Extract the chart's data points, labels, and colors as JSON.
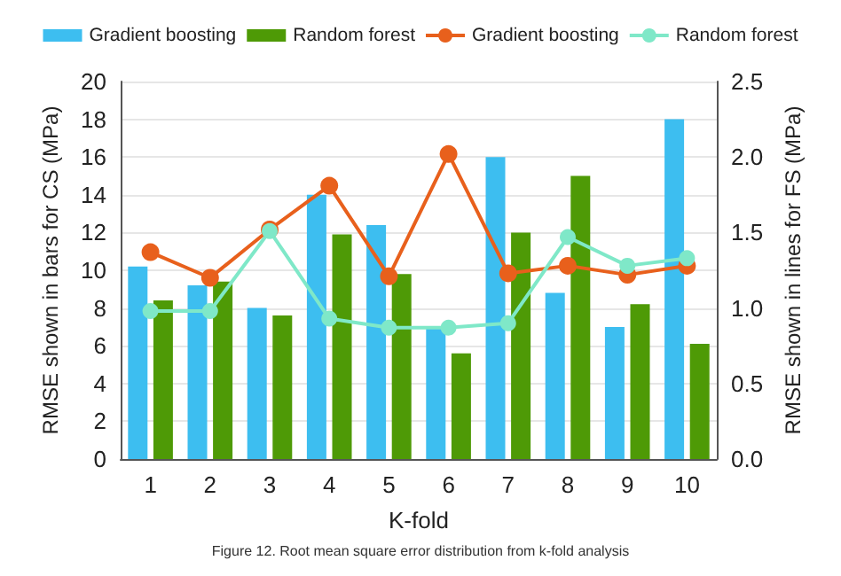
{
  "chart_data": {
    "type": "bar",
    "xlabel": "K-fold",
    "ylabel": "RMSE shown in bars for CS (MPa)",
    "y2label": "RMSE shown in lines for FS (MPa)",
    "categories": [
      "1",
      "2",
      "3",
      "4",
      "5",
      "6",
      "7",
      "8",
      "9",
      "10"
    ],
    "series": [
      {
        "name": "Gradient boosting",
        "type": "bar",
        "color": "#3dbef0",
        "values": [
          10.2,
          9.2,
          8.0,
          14.0,
          12.4,
          7.0,
          16.0,
          8.8,
          7.0,
          18.0
        ]
      },
      {
        "name": "Random forest",
        "type": "bar",
        "color": "#4e9a06",
        "values": [
          8.4,
          9.4,
          7.6,
          11.9,
          9.8,
          5.6,
          12.0,
          15.0,
          8.2,
          6.1
        ]
      },
      {
        "name": "Gradient boosting",
        "type": "line",
        "axis": "y2",
        "color": "#e8601c",
        "values": [
          1.37,
          1.2,
          1.52,
          1.81,
          1.21,
          2.02,
          1.23,
          1.28,
          1.22,
          1.28
        ]
      },
      {
        "name": "Random forest",
        "type": "line",
        "axis": "y2",
        "color": "#7fe8c8",
        "values": [
          0.98,
          0.98,
          1.51,
          0.93,
          0.87,
          0.87,
          0.9,
          1.47,
          1.28,
          1.33
        ]
      }
    ],
    "ylim": [
      0,
      20
    ],
    "yticks": [
      0,
      2,
      4,
      6,
      8,
      10,
      12,
      14,
      16,
      18,
      20
    ],
    "y2lim": [
      0,
      2.5
    ],
    "y2ticks": [
      {
        "value": 0,
        "label": "0.0"
      },
      {
        "value": 0.5,
        "label": "0.5"
      },
      {
        "value": 1,
        "label": "1.0"
      },
      {
        "value": 1.5,
        "label": "1.5"
      },
      {
        "value": 2,
        "label": "2.0"
      },
      {
        "value": 2.5,
        "label": "2.5"
      }
    ],
    "grid": "y",
    "legend": "top",
    "marker": "circle",
    "annotations": [
      "Figure 12. Root mean square error distribution from k-fold analysis"
    ]
  }
}
